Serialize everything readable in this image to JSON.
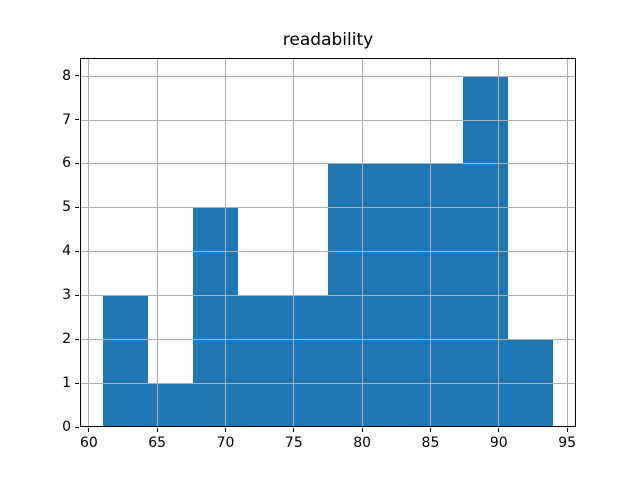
{
  "chart_data": {
    "type": "bar",
    "subtype": "histogram",
    "title": "readability",
    "xlabel": "",
    "ylabel": "",
    "bin_edges": [
      61.0,
      64.3,
      67.6,
      70.9,
      74.2,
      77.5,
      80.8,
      84.1,
      87.4,
      90.7,
      94.0
    ],
    "counts": [
      3,
      1,
      5,
      3,
      3,
      6,
      6,
      6,
      8,
      2
    ],
    "xlim": [
      59.35,
      95.65
    ],
    "ylim": [
      0,
      8.4
    ],
    "x_ticks": [
      60,
      65,
      70,
      75,
      80,
      85,
      90,
      95
    ],
    "y_ticks": [
      0,
      1,
      2,
      3,
      4,
      5,
      6,
      7,
      8
    ],
    "grid": true,
    "grid_above_bars": true,
    "legend": null,
    "colors": {
      "bar": "#1f77b4",
      "grid": "#b0b0b0",
      "spine": "#000000",
      "text": "#000000",
      "background": "#ffffff"
    }
  }
}
